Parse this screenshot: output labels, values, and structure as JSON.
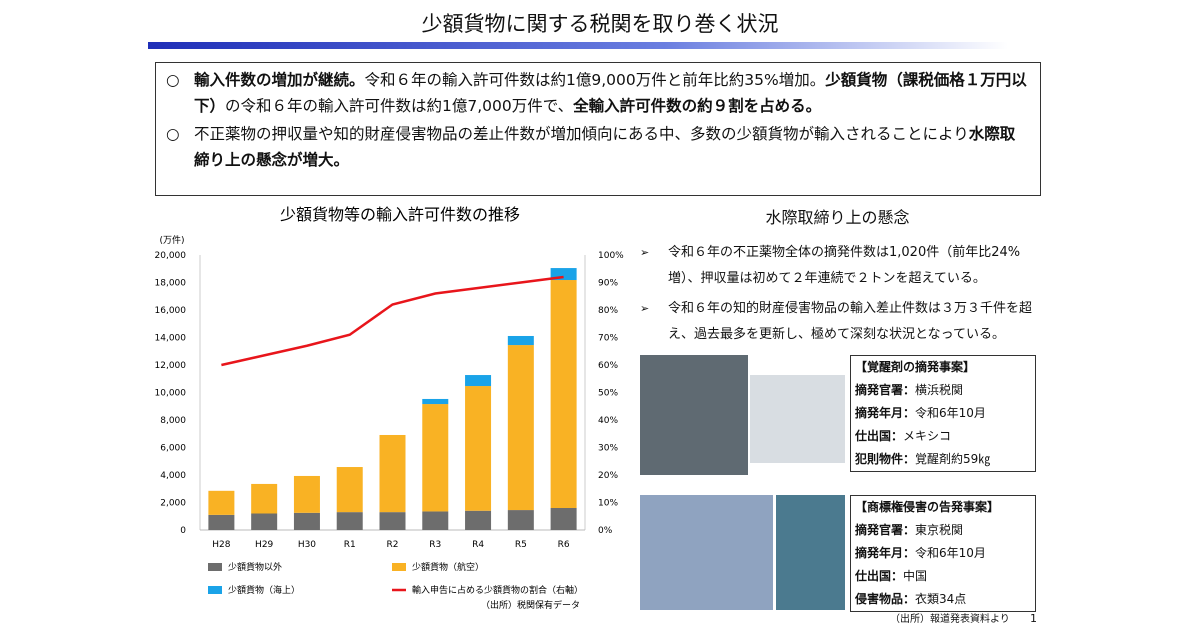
{
  "header": {
    "title": "少額貨物に関する税関を取り巻く状況"
  },
  "summary": {
    "bullets": [
      {
        "mark": "○",
        "segments": [
          {
            "text": "輸入件数の増加が継続。",
            "bold": true
          },
          {
            "text": "令和６年の輸入許可件数は約1億9,000万件と前年比約35%増加。",
            "bold": false
          },
          {
            "text": "少額貨物（課税価格１万円以下）",
            "bold": true
          },
          {
            "text": "の令和６年の輸入許可件数は約1億7,000万件で、",
            "bold": false
          },
          {
            "text": "全輸入許可件数の約９割を占める。",
            "bold": true
          }
        ]
      },
      {
        "mark": "○",
        "segments": [
          {
            "text": "不正薬物の押収量や知的財産侵害物品の差止件数が増加傾向にある中、多数の少額貨物が輸入されることにより",
            "bold": false
          },
          {
            "text": "水際取締り上の懸念が増大。",
            "bold": true
          }
        ]
      }
    ]
  },
  "chart_data": {
    "type": "bar",
    "stacked": true,
    "title": "少額貨物等の輸入許可件数の推移",
    "y_unit": "(万件)",
    "categories": [
      "H28",
      "H29",
      "H30",
      "R1",
      "R2",
      "R3",
      "R4",
      "R5",
      "R6"
    ],
    "series": [
      {
        "name": "少額貨物以外",
        "color": "#6d6d6d",
        "values": [
          1100,
          1200,
          1250,
          1300,
          1300,
          1350,
          1400,
          1450,
          1600
        ]
      },
      {
        "name": "少額貨物（航空）",
        "color": "#f9b224",
        "values": [
          1750,
          2150,
          2680,
          3280,
          5610,
          7810,
          9070,
          12000,
          16580
        ]
      },
      {
        "name": "少額貨物（海上）",
        "color": "#1aa3e8",
        "values": [
          0,
          0,
          0,
          0,
          0,
          370,
          800,
          660,
          870
        ]
      },
      {
        "name": "輸入申告に占める少額貨物の割合（右軸）",
        "color": "#e8151b",
        "type": "line",
        "axis": "y2",
        "values": [
          60,
          63.5,
          67,
          71,
          82,
          86,
          88,
          90,
          92
        ]
      }
    ],
    "ylim": [
      0,
      20000
    ],
    "yticks": [
      0,
      {
        "value": 2000,
        "label": "2,000"
      },
      {
        "value": 4000,
        "label": "4,000"
      },
      {
        "value": 6000,
        "label": "6,000"
      },
      {
        "value": 8000,
        "label": "8,000"
      },
      {
        "value": 10000,
        "label": "10,000"
      },
      {
        "value": 12000,
        "label": "12,000"
      },
      {
        "value": 14000,
        "label": "14,000"
      },
      {
        "value": 16000,
        "label": "16,000"
      },
      {
        "value": 18000,
        "label": "18,000"
      },
      {
        "value": 20000,
        "label": "20,000"
      }
    ],
    "y2lim": [
      0,
      100
    ],
    "y2ticks": [
      {
        "value": 0,
        "label": "0%"
      },
      {
        "value": 10,
        "label": "10%"
      },
      {
        "value": 20,
        "label": "20%"
      },
      {
        "value": 30,
        "label": "30%"
      },
      {
        "value": 40,
        "label": "40%"
      },
      {
        "value": 50,
        "label": "50%"
      },
      {
        "value": 60,
        "label": "60%"
      },
      {
        "value": 70,
        "label": "70%"
      },
      {
        "value": 80,
        "label": "80%"
      },
      {
        "value": 90,
        "label": "90%"
      },
      {
        "value": 100,
        "label": "100%"
      }
    ],
    "grid": false,
    "source": "（出所）税関保有データ"
  },
  "concerns": {
    "title": "水際取締り上の懸念",
    "bullets": [
      {
        "mark": "➢",
        "text": "令和６年の不正薬物全体の摘発件数は1,020件（前年比24%増）、押収量は初めて２年連続で２トンを超えている。"
      },
      {
        "mark": "➢",
        "text": "令和６年の知的財産侵害物品の輸入差止件数は３万３千件を超え、過去最多を更新し、極めて深刻な状況となっている。"
      }
    ],
    "cases": [
      {
        "title": "【覚醒剤の摘発事案】",
        "rows": [
          {
            "label": "摘発官署：",
            "value": "横浜税関"
          },
          {
            "label": "摘発年月：",
            "value": "令和6年10月"
          },
          {
            "label": "仕出国：",
            "value": "メキシコ"
          },
          {
            "label": "犯則物件：",
            "value": "覚醒剤約59㎏"
          }
        ]
      },
      {
        "title": "【商標権侵害の告発事案】",
        "rows": [
          {
            "label": "摘発官署：",
            "value": "東京税関"
          },
          {
            "label": "摘発年月：",
            "value": "令和6年10月"
          },
          {
            "label": "仕出国：",
            "value": "中国"
          },
          {
            "label": "侵害物品：",
            "value": "衣類34点"
          }
        ]
      }
    ],
    "source": "（出所）報道発表資料より"
  },
  "footer": {
    "page": "1"
  }
}
